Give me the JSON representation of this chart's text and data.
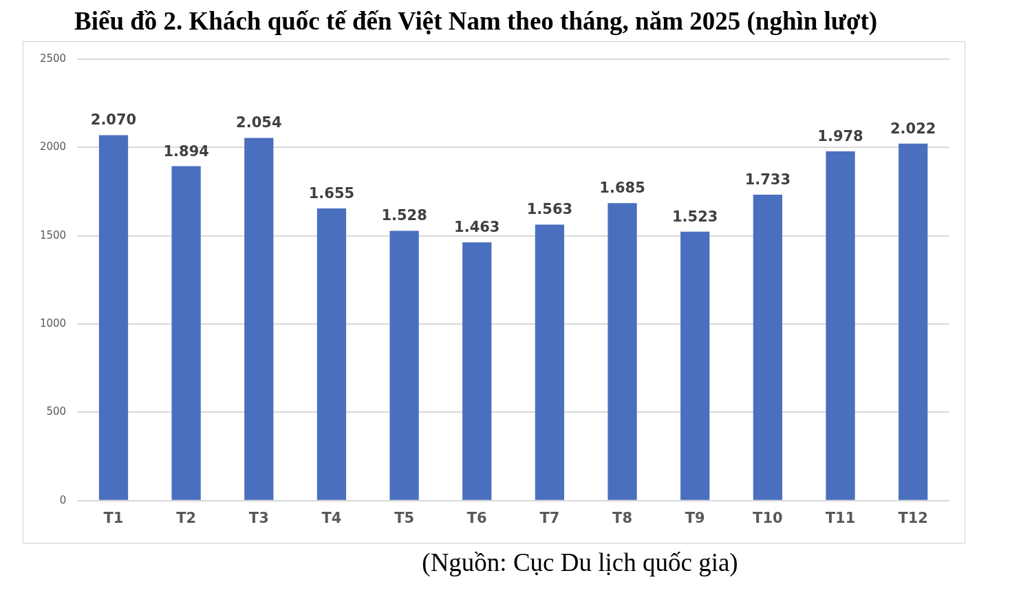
{
  "chart_data": {
    "type": "bar",
    "title": "Biểu đồ 2. Khách quốc tế đến Việt Nam theo tháng, năm 2025 (nghìn lượt)",
    "categories": [
      "T1",
      "T2",
      "T3",
      "T4",
      "T5",
      "T6",
      "T7",
      "T8",
      "T9",
      "T10",
      "T11",
      "T12"
    ],
    "values": [
      2070,
      1894,
      2054,
      1655,
      1528,
      1463,
      1563,
      1685,
      1523,
      1733,
      1978,
      2022
    ],
    "value_labels": [
      "2.070",
      "1.894",
      "2.054",
      "1.655",
      "1.528",
      "1.463",
      "1.563",
      "1.685",
      "1.523",
      "1.733",
      "1.978",
      "2.022"
    ],
    "color": "#4a6fbe",
    "ylim": [
      0,
      2500
    ],
    "yticks": [
      0,
      500,
      1000,
      1500,
      2000,
      2500
    ],
    "grid": "y",
    "legend": false,
    "annotations": [
      "(Nguồn: Cục Du lịch quốc gia)"
    ]
  }
}
